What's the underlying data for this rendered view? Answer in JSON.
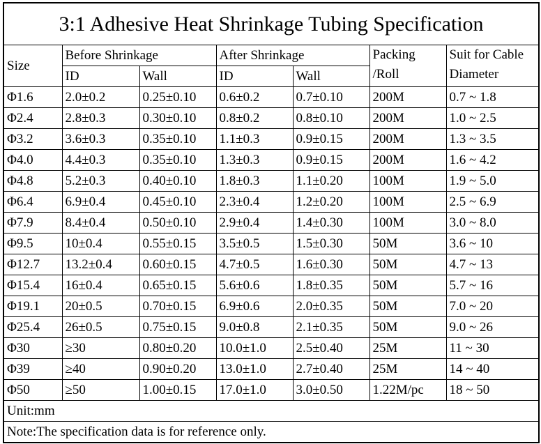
{
  "title": "3:1 Adhesive Heat Shrinkage Tubing Specification",
  "table": {
    "headers": {
      "size": "Size",
      "before": "Before Shrinkage",
      "after": "After Shrinkage",
      "before_id": "ID",
      "before_wall": "Wall",
      "after_id": "ID",
      "after_wall": "Wall",
      "packing": [
        "Packing",
        "/Roll"
      ],
      "suit": [
        "Suit for Cable",
        "Diameter"
      ]
    },
    "rows": [
      [
        "Φ1.6",
        "2.0±0.2",
        "0.25±0.10",
        "0.6±0.2",
        "0.7±0.10",
        "200M",
        "0.7 ~ 1.8"
      ],
      [
        "Φ2.4",
        "2.8±0.3",
        "0.30±0.10",
        "0.8±0.2",
        "0.8±0.10",
        "200M",
        "1.0 ~ 2.5"
      ],
      [
        "Φ3.2",
        "3.6±0.3",
        "0.35±0.10",
        "1.1±0.3",
        "0.9±0.15",
        "200M",
        "1.3 ~ 3.5"
      ],
      [
        "Φ4.0",
        "4.4±0.3",
        "0.35±0.10",
        "1.3±0.3",
        "0.9±0.15",
        "200M",
        "1.6 ~ 4.2"
      ],
      [
        "Φ4.8",
        "5.2±0.3",
        "0.40±0.10",
        "1.8±0.3",
        "1.1±0.20",
        "100M",
        "1.9 ~ 5.0"
      ],
      [
        "Φ6.4",
        "6.9±0.4",
        "0.45±0.10",
        "2.3±0.4",
        "1.2±0.20",
        "100M",
        "2.5 ~ 6.9"
      ],
      [
        "Φ7.9",
        "8.4±0.4",
        "0.50±0.10",
        "2.9±0.4",
        "1.4±0.30",
        "100M",
        "3.0 ~ 8.0"
      ],
      [
        "Φ9.5",
        "10±0.4",
        "0.55±0.15",
        "3.5±0.5",
        "1.5±0.30",
        "50M",
        "3.6 ~ 10"
      ],
      [
        "Φ12.7",
        "13.2±0.4",
        "0.60±0.15",
        "4.7±0.5",
        "1.6±0.30",
        "50M",
        "4.7 ~ 13"
      ],
      [
        "Φ15.4",
        "16±0.4",
        "0.65±0.15",
        "5.6±0.6",
        "1.8±0.35",
        "50M",
        "5.7 ~ 16"
      ],
      [
        "Φ19.1",
        "20±0.5",
        "0.70±0.15",
        "6.9±0.6",
        "2.0±0.35",
        "50M",
        "7.0 ~ 20"
      ],
      [
        "Φ25.4",
        "26±0.5",
        "0.75±0.15",
        "9.0±0.8",
        "2.1±0.35",
        "50M",
        "9.0 ~ 26"
      ],
      [
        "Φ30",
        "≥30",
        "0.80±0.20",
        "10.0±1.0",
        "2.5±0.40",
        "25M",
        "11 ~ 30"
      ],
      [
        "Φ39",
        "≥40",
        "0.90±0.20",
        "13.0±1.0",
        "2.7±0.40",
        "25M",
        "14 ~ 40"
      ],
      [
        "Φ50",
        "≥50",
        "1.00±0.15",
        "17.0±1.0",
        "3.0±0.50",
        "1.22M/pc",
        "18 ~ 50"
      ]
    ]
  },
  "unit": "Unit:mm",
  "note": "Note:The specification data is for reference only."
}
